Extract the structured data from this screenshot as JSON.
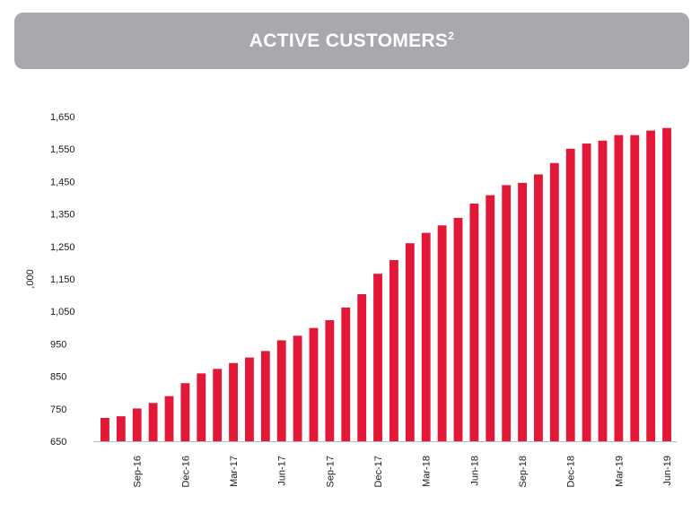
{
  "header": {
    "title": "ACTIVE CUSTOMERS",
    "superscript": "2"
  },
  "chart_data": {
    "type": "bar",
    "title": "ACTIVE CUSTOMERS²",
    "ylabel": ",000",
    "xlabel": "",
    "ylim": [
      650,
      1650
    ],
    "yticks": [
      650,
      750,
      850,
      950,
      1050,
      1150,
      1250,
      1350,
      1450,
      1550,
      1650
    ],
    "ytick_labels": [
      "650",
      "750",
      "850",
      "950",
      "1,050",
      "1,150",
      "1,250",
      "1,350",
      "1,450",
      "1,550",
      "1,650"
    ],
    "bar_color": "#e31837",
    "grid": false,
    "categories": [
      "Jul-16",
      "Aug-16",
      "Sep-16",
      "Oct-16",
      "Nov-16",
      "Dec-16",
      "Jan-17",
      "Feb-17",
      "Mar-17",
      "Apr-17",
      "May-17",
      "Jun-17",
      "Jul-17",
      "Aug-17",
      "Sep-17",
      "Oct-17",
      "Nov-17",
      "Dec-17",
      "Jan-18",
      "Feb-18",
      "Mar-18",
      "Apr-18",
      "May-18",
      "Jun-18",
      "Jul-18",
      "Aug-18",
      "Sep-18",
      "Oct-18",
      "Nov-18",
      "Dec-18",
      "Jan-19",
      "Feb-19",
      "Mar-19",
      "Apr-19",
      "May-19",
      "Jun-19"
    ],
    "values": [
      722,
      727,
      751,
      768,
      789,
      829,
      859,
      873,
      891,
      908,
      928,
      961,
      975,
      999,
      1023,
      1062,
      1103,
      1166,
      1208,
      1260,
      1292,
      1315,
      1338,
      1382,
      1408,
      1439,
      1446,
      1472,
      1507,
      1551,
      1567,
      1576,
      1593,
      1593,
      1607,
      1615
    ],
    "xtick_labels": [
      "Sep-16",
      "Dec-16",
      "Mar-17",
      "Jun-17",
      "Sep-17",
      "Dec-17",
      "Mar-18",
      "Jun-18",
      "Sep-18",
      "Dec-18",
      "Mar-19",
      "Jun-19"
    ],
    "xtick_categories": [
      "Sep-16",
      "Dec-16",
      "Mar-17",
      "Jun-17",
      "Sep-17",
      "Dec-17",
      "Mar-18",
      "Jun-18",
      "Sep-18",
      "Dec-18",
      "Mar-19",
      "Jun-19"
    ]
  }
}
